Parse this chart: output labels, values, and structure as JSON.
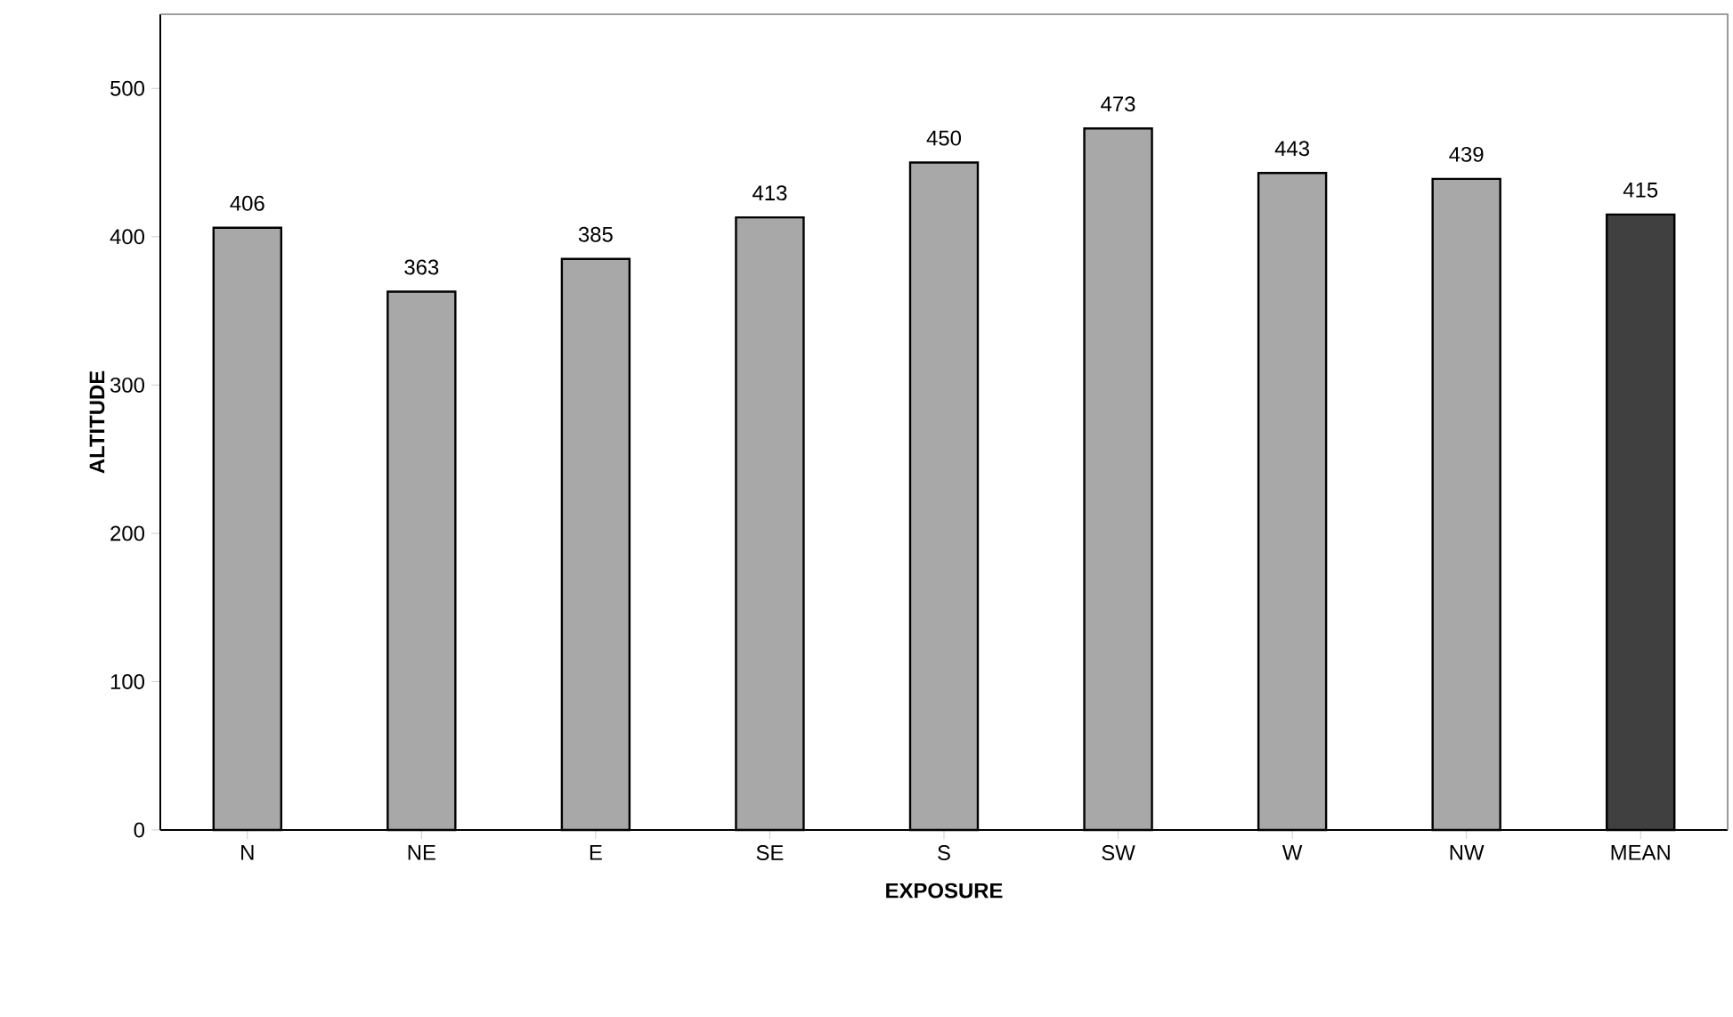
{
  "chart_data": {
    "type": "bar",
    "xlabel": "EXPOSURE",
    "ylabel": "ALTITUDE",
    "categories": [
      "N",
      "NE",
      "E",
      "SE",
      "S",
      "SW",
      "W",
      "NW",
      "MEAN"
    ],
    "values": [
      406,
      363,
      385,
      413,
      450,
      473,
      443,
      439,
      415
    ],
    "colors": [
      "#a8a8a8",
      "#a8a8a8",
      "#a8a8a8",
      "#a8a8a8",
      "#a8a8a8",
      "#a8a8a8",
      "#a8a8a8",
      "#a8a8a8",
      "#404040"
    ],
    "ylim": [
      0,
      550
    ],
    "yticks": [
      0,
      100,
      200,
      300,
      400,
      500
    ],
    "data_labels": true
  }
}
